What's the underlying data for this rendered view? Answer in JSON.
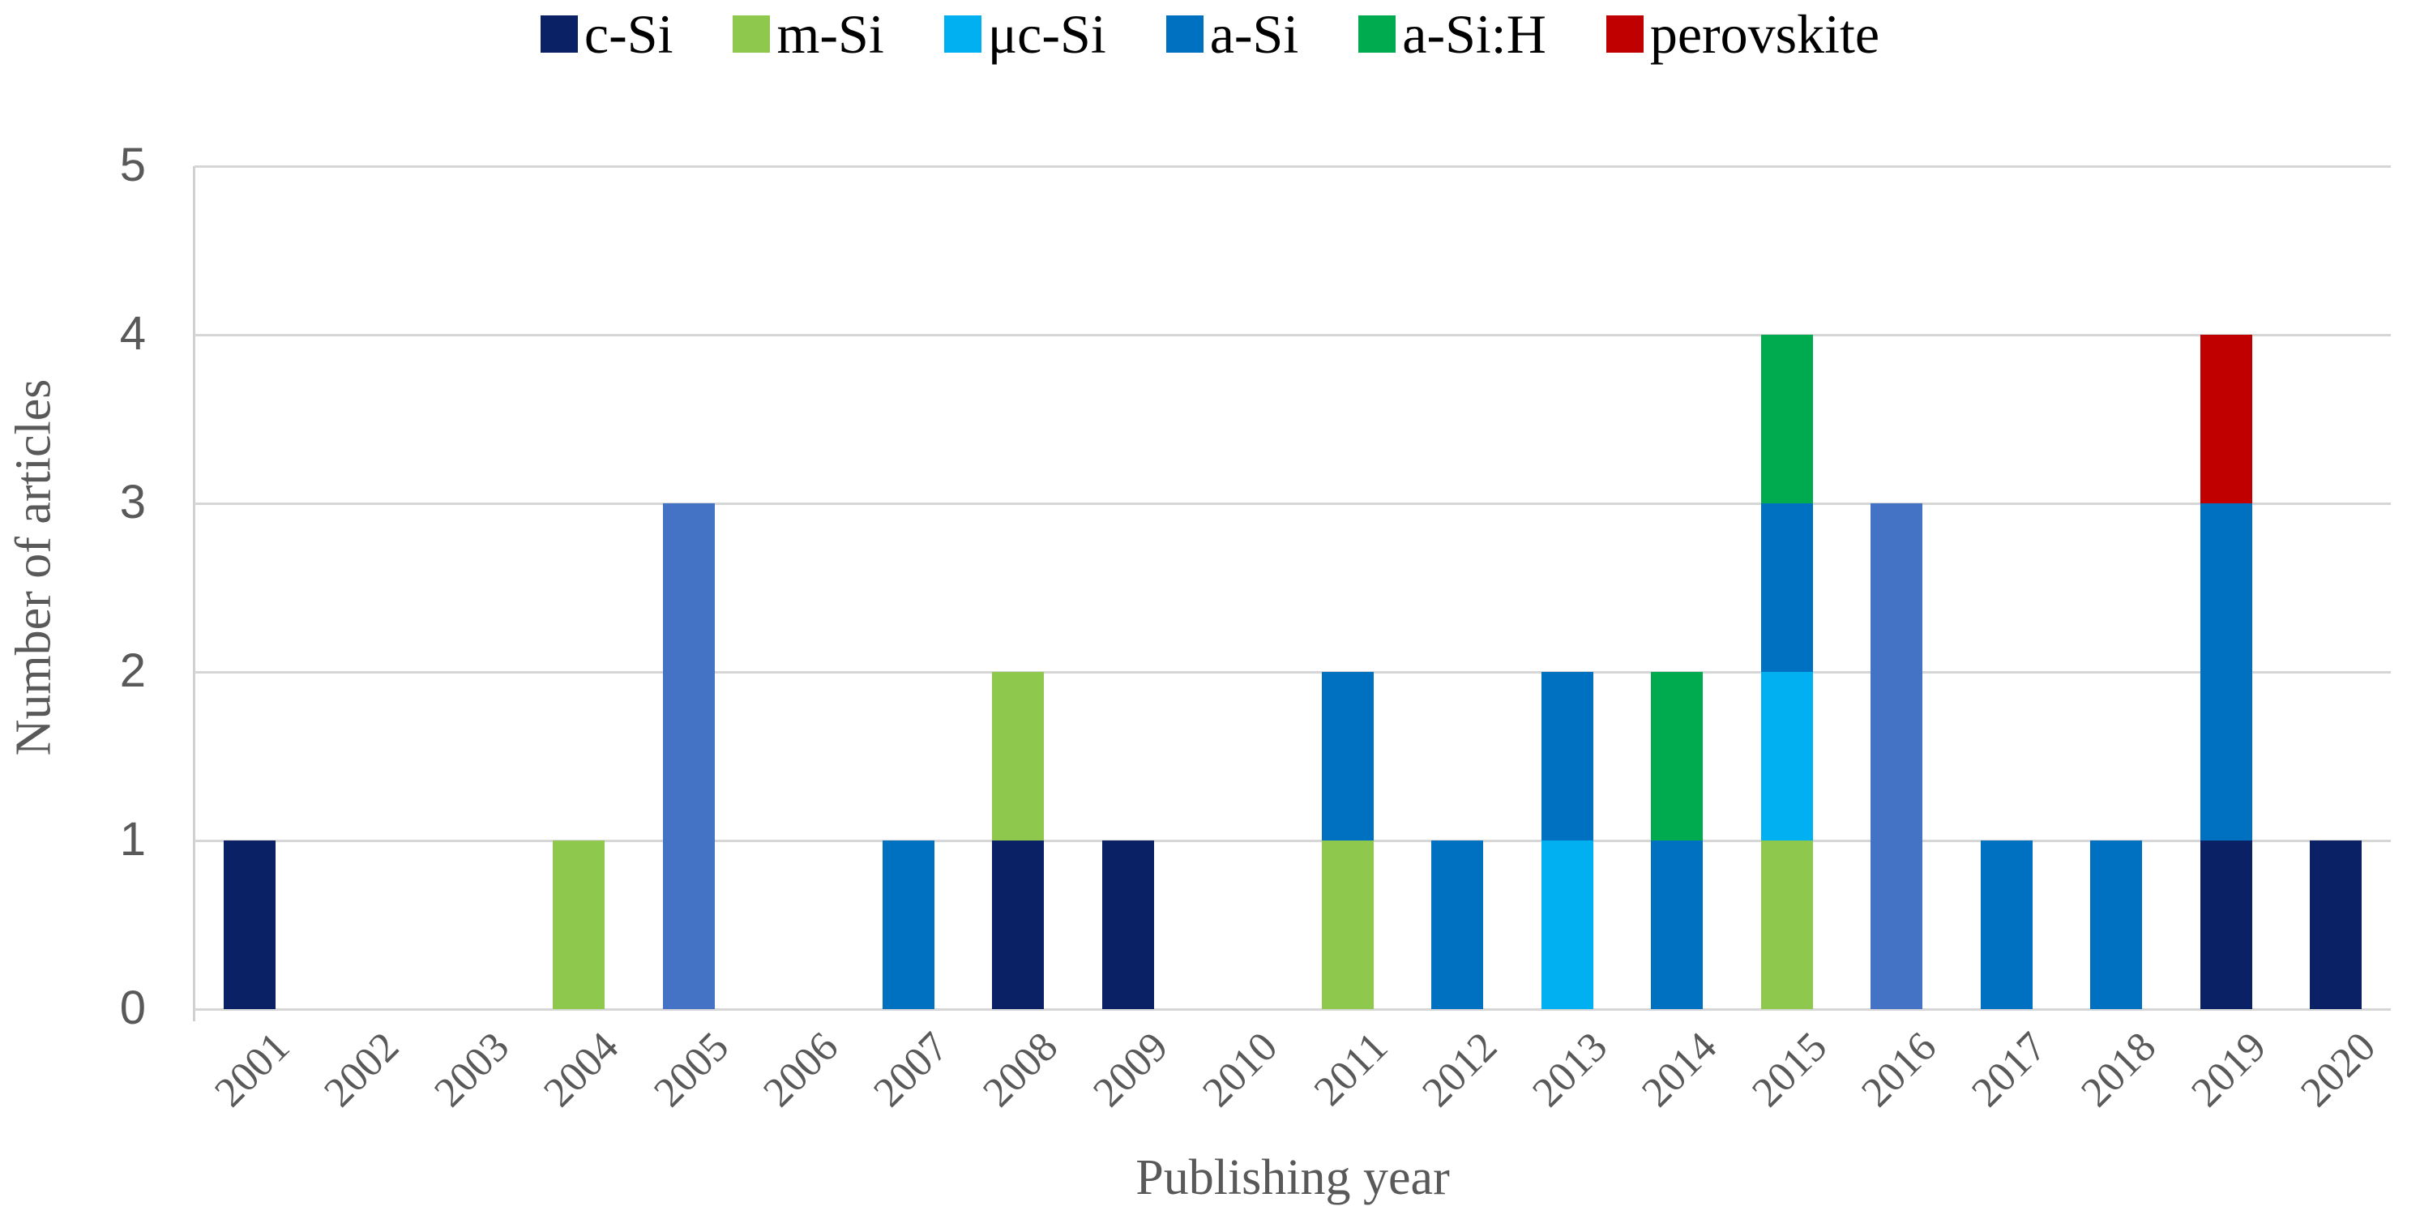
{
  "colors": {
    "c_si": "#0a2166",
    "m_si": "#8ec94d",
    "uc_si": "#00b0f0",
    "a_si": "#0071c1",
    "a_si_h": "#00ab50",
    "perovskite": "#c00000",
    "unlabeled_blue": "#4472c4",
    "gridline": "#d6d6d6",
    "axis_text": "#595959",
    "legend_text": "#000000"
  },
  "chart_data": {
    "type": "bar",
    "subtype": "stacked-vertical",
    "title": "",
    "xlabel": "Publishing year",
    "ylabel": "Number of articles",
    "ylim": [
      0,
      5
    ],
    "yticks": [
      "0",
      "1",
      "2",
      "3",
      "4",
      "5"
    ],
    "grid": "horizontal",
    "legend_position": "top-center",
    "legend": [
      {
        "label": "c-Si",
        "color": "#0a2166"
      },
      {
        "label": "m-Si",
        "color": "#8ec94d"
      },
      {
        "label": "μc-Si",
        "color": "#00b0f0"
      },
      {
        "label": "a-Si",
        "color": "#0071c1"
      },
      {
        "label": "a-Si:H",
        "color": "#00ab50"
      },
      {
        "label": "perovskite",
        "color": "#c00000"
      }
    ],
    "categories": [
      "2001",
      "2002",
      "2003",
      "2004",
      "2005",
      "2006",
      "2007",
      "2008",
      "2009",
      "2010",
      "2011",
      "2012",
      "2013",
      "2014",
      "2015",
      "2016",
      "2017",
      "2018",
      "2019",
      "2020"
    ],
    "bars": [
      {
        "year": "2001",
        "total": 1,
        "segments": [
          {
            "series": "c-Si",
            "value": 1,
            "color": "#0a2166"
          }
        ]
      },
      {
        "year": "2002",
        "total": 0,
        "segments": []
      },
      {
        "year": "2003",
        "total": 0,
        "segments": []
      },
      {
        "year": "2004",
        "total": 1,
        "segments": [
          {
            "series": "m-Si",
            "value": 1,
            "color": "#8ec94d"
          }
        ]
      },
      {
        "year": "2005",
        "total": 3,
        "segments": [
          {
            "series": "unlabeled-blue",
            "value": 3,
            "color": "#4472c4"
          }
        ]
      },
      {
        "year": "2006",
        "total": 0,
        "segments": []
      },
      {
        "year": "2007",
        "total": 1,
        "segments": [
          {
            "series": "a-Si",
            "value": 1,
            "color": "#0071c1"
          }
        ]
      },
      {
        "year": "2008",
        "total": 2,
        "segments": [
          {
            "series": "c-Si",
            "value": 1,
            "color": "#0a2166"
          },
          {
            "series": "m-Si",
            "value": 1,
            "color": "#8ec94d"
          }
        ]
      },
      {
        "year": "2009",
        "total": 1,
        "segments": [
          {
            "series": "c-Si",
            "value": 1,
            "color": "#0a2166"
          }
        ]
      },
      {
        "year": "2010",
        "total": 0,
        "segments": []
      },
      {
        "year": "2011",
        "total": 2,
        "segments": [
          {
            "series": "m-Si",
            "value": 1,
            "color": "#8ec94d"
          },
          {
            "series": "a-Si",
            "value": 1,
            "color": "#0071c1"
          }
        ]
      },
      {
        "year": "2012",
        "total": 1,
        "segments": [
          {
            "series": "a-Si",
            "value": 1,
            "color": "#0071c1"
          }
        ]
      },
      {
        "year": "2013",
        "total": 2,
        "segments": [
          {
            "series": "μc-Si",
            "value": 1,
            "color": "#00b0f0"
          },
          {
            "series": "a-Si",
            "value": 1,
            "color": "#0071c1"
          }
        ]
      },
      {
        "year": "2014",
        "total": 2,
        "segments": [
          {
            "series": "a-Si",
            "value": 1,
            "color": "#0071c1"
          },
          {
            "series": "a-Si:H",
            "value": 1,
            "color": "#00ab50"
          }
        ]
      },
      {
        "year": "2015",
        "total": 4,
        "segments": [
          {
            "series": "m-Si",
            "value": 1,
            "color": "#8ec94d"
          },
          {
            "series": "μc-Si",
            "value": 1,
            "color": "#00b0f0"
          },
          {
            "series": "a-Si",
            "value": 1,
            "color": "#0071c1"
          },
          {
            "series": "a-Si:H",
            "value": 1,
            "color": "#00ab50"
          }
        ]
      },
      {
        "year": "2016",
        "total": 3,
        "segments": [
          {
            "series": "unlabeled-blue",
            "value": 3,
            "color": "#4472c4"
          }
        ]
      },
      {
        "year": "2017",
        "total": 1,
        "segments": [
          {
            "series": "a-Si",
            "value": 1,
            "color": "#0071c1"
          }
        ]
      },
      {
        "year": "2018",
        "total": 1,
        "segments": [
          {
            "series": "a-Si",
            "value": 1,
            "color": "#0071c1"
          }
        ]
      },
      {
        "year": "2019",
        "total": 4,
        "segments": [
          {
            "series": "c-Si",
            "value": 1,
            "color": "#0a2166"
          },
          {
            "series": "a-Si",
            "value": 2,
            "color": "#0071c1"
          },
          {
            "series": "perovskite",
            "value": 1,
            "color": "#c00000"
          }
        ]
      },
      {
        "year": "2020",
        "total": 1,
        "segments": [
          {
            "series": "c-Si",
            "value": 1,
            "color": "#0a2166"
          }
        ]
      }
    ]
  }
}
